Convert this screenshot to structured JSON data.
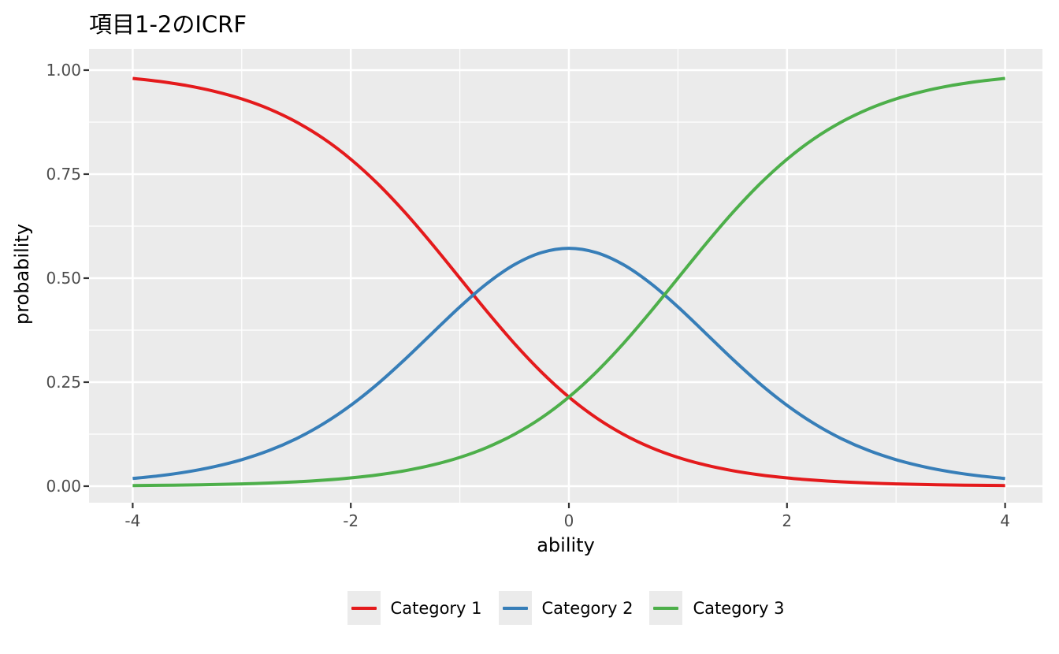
{
  "chart": {
    "title": "項目1-2のICRF",
    "xlabel": "ability",
    "ylabel": "probability",
    "panel_bg": "#EBEBEB",
    "gridline_color": "#FFFFFF",
    "tick_mark_color": "#333333",
    "tick_label_color": "#4D4D4D",
    "x_ticks": {
      "values": [
        -4,
        -2,
        0,
        2,
        4
      ],
      "labels": [
        "-4",
        "-2",
        "0",
        "2",
        "4"
      ]
    },
    "x_minor_ticks": [
      -3,
      -1,
      1,
      3
    ],
    "y_ticks": {
      "values": [
        0,
        0.25,
        0.5,
        0.75,
        1
      ],
      "labels": [
        "0.00",
        "0.25",
        "0.50",
        "0.75",
        "1.00"
      ]
    },
    "y_minor_ticks": [
      0.125,
      0.375,
      0.625,
      0.875
    ]
  },
  "legend": {
    "items": [
      {
        "label": "Category 1",
        "color": "#E41A1C"
      },
      {
        "label": "Category 2",
        "color": "#377EB8"
      },
      {
        "label": "Category 3",
        "color": "#4DAF4A"
      }
    ]
  },
  "chart_data": {
    "type": "line",
    "title": "項目1-2のICRF",
    "xlabel": "ability",
    "ylabel": "probability",
    "xlim": [
      -4,
      4
    ],
    "ylim": [
      0,
      1
    ],
    "grid": true,
    "legend_position": "bottom",
    "x": [
      -4,
      -3.75,
      -3.5,
      -3.25,
      -3,
      -2.75,
      -2.5,
      -2.25,
      -2,
      -1.75,
      -1.5,
      -1.25,
      -1,
      -0.75,
      -0.5,
      -0.25,
      0,
      0.25,
      0.5,
      0.75,
      1,
      1.25,
      1.5,
      1.75,
      2,
      2.25,
      2.5,
      2.75,
      3,
      3.25,
      3.5,
      3.75,
      4
    ],
    "series": [
      {
        "name": "Category 1",
        "color": "#E41A1C",
        "values": [
          0.9802,
          0.9727,
          0.9627,
          0.9491,
          0.9309,
          0.9068,
          0.8754,
          0.8355,
          0.7858,
          0.7261,
          0.657,
          0.5805,
          0.5,
          0.4195,
          0.343,
          0.2739,
          0.2142,
          0.1645,
          0.1246,
          0.0932,
          0.0691,
          0.0509,
          0.0373,
          0.0272,
          0.0198,
          0.0144,
          0.0105,
          0.0076,
          0.0055,
          0.004,
          0.0029,
          0.0021,
          0.0015
        ]
      },
      {
        "name": "Category 2",
        "color": "#377EB8",
        "values": [
          0.0183,
          0.0252,
          0.0345,
          0.047,
          0.0637,
          0.0856,
          0.1141,
          0.1501,
          0.1943,
          0.2466,
          0.3057,
          0.3685,
          0.4309,
          0.4873,
          0.5324,
          0.5616,
          0.5717,
          0.5616,
          0.5324,
          0.4873,
          0.4309,
          0.3685,
          0.3057,
          0.2466,
          0.1943,
          0.1501,
          0.1141,
          0.0856,
          0.0637,
          0.047,
          0.0345,
          0.0252,
          0.0183
        ]
      },
      {
        "name": "Category 3",
        "color": "#4DAF4A",
        "values": [
          0.0015,
          0.0021,
          0.0029,
          0.004,
          0.0055,
          0.0076,
          0.0105,
          0.0144,
          0.0198,
          0.0272,
          0.0373,
          0.0509,
          0.0691,
          0.0932,
          0.1246,
          0.1645,
          0.2142,
          0.2739,
          0.343,
          0.4195,
          0.5,
          0.5805,
          0.657,
          0.7261,
          0.7858,
          0.8355,
          0.8754,
          0.9068,
          0.9309,
          0.9491,
          0.9627,
          0.9727,
          0.9802
        ]
      }
    ]
  }
}
